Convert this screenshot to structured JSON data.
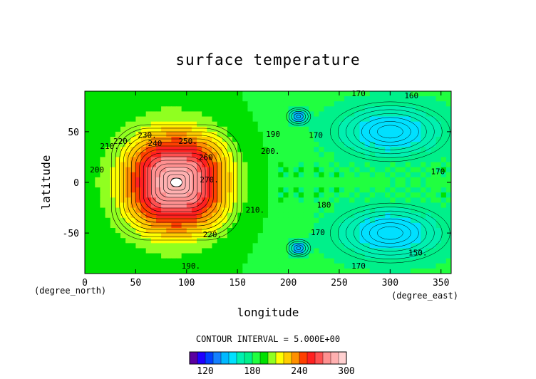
{
  "chart_data": {
    "type": "heatmap",
    "title": "surface temperature",
    "xlabel": "longitude",
    "ylabel": "latitude",
    "x_units": "(degree_east)",
    "y_units": "(degree_north)",
    "xlim": [
      0,
      360
    ],
    "ylim": [
      -90,
      90
    ],
    "xticks": [
      0,
      50,
      100,
      150,
      200,
      250,
      300,
      350
    ],
    "yticks": [
      -50,
      0,
      50
    ],
    "contour_interval_text": "CONTOUR INTERVAL = 5.000E+00",
    "contour_labels": [
      {
        "text": "230.",
        "lon": 52,
        "lat": 44
      },
      {
        "text": "220.",
        "lon": 28,
        "lat": 38
      },
      {
        "text": "210.",
        "lon": 15,
        "lat": 33
      },
      {
        "text": "200",
        "lon": 5,
        "lat": 10
      },
      {
        "text": "240",
        "lon": 62,
        "lat": 36
      },
      {
        "text": "250.",
        "lon": 92,
        "lat": 38
      },
      {
        "text": "260",
        "lon": 112,
        "lat": 22
      },
      {
        "text": "270.",
        "lon": 113,
        "lat": 0
      },
      {
        "text": "210.",
        "lon": 158,
        "lat": -30
      },
      {
        "text": "220.",
        "lon": 116,
        "lat": -54
      },
      {
        "text": "190.",
        "lon": 95,
        "lat": -85
      },
      {
        "text": "190",
        "lon": 178,
        "lat": 45
      },
      {
        "text": "200.",
        "lon": 173,
        "lat": 28
      },
      {
        "text": "170",
        "lon": 262,
        "lat": 85
      },
      {
        "text": "160",
        "lon": 314,
        "lat": 83
      },
      {
        "text": "170",
        "lon": 220,
        "lat": 44
      },
      {
        "text": "170",
        "lon": 340,
        "lat": 8
      },
      {
        "text": "180",
        "lon": 228,
        "lat": -25
      },
      {
        "text": "170",
        "lon": 222,
        "lat": -52
      },
      {
        "text": "150.",
        "lon": 318,
        "lat": -72
      },
      {
        "text": "170",
        "lon": 262,
        "lat": -85
      }
    ],
    "colorbar": {
      "min": 100,
      "max": 300,
      "step": 10,
      "tick_labels": [
        "120",
        "180",
        "240",
        "300"
      ],
      "colors": [
        "#5a00a0",
        "#1f00ff",
        "#0040ff",
        "#1480ff",
        "#00b8ff",
        "#00e0ff",
        "#00f0b0",
        "#00f08a",
        "#20ff40",
        "#00e000",
        "#90ff20",
        "#ffff00",
        "#ffcc00",
        "#ff9000",
        "#ff4000",
        "#ff2020",
        "#ff5050",
        "#ff9090",
        "#ffb0b0",
        "#ffd0d0"
      ]
    },
    "regions": [
      {
        "name": "hot-spot",
        "center_lon": 90,
        "center_lat": 0,
        "peak": 290
      },
      {
        "name": "cold-north",
        "center_lon": 300,
        "center_lat": 50,
        "min": 150
      },
      {
        "name": "cold-south",
        "center_lon": 300,
        "center_lat": -50,
        "min": 150
      },
      {
        "name": "cold-vortex-north",
        "center_lon": 210,
        "center_lat": 65,
        "min": 140
      },
      {
        "name": "cold-vortex-south",
        "center_lon": 210,
        "center_lat": -65,
        "min": 140
      }
    ]
  }
}
